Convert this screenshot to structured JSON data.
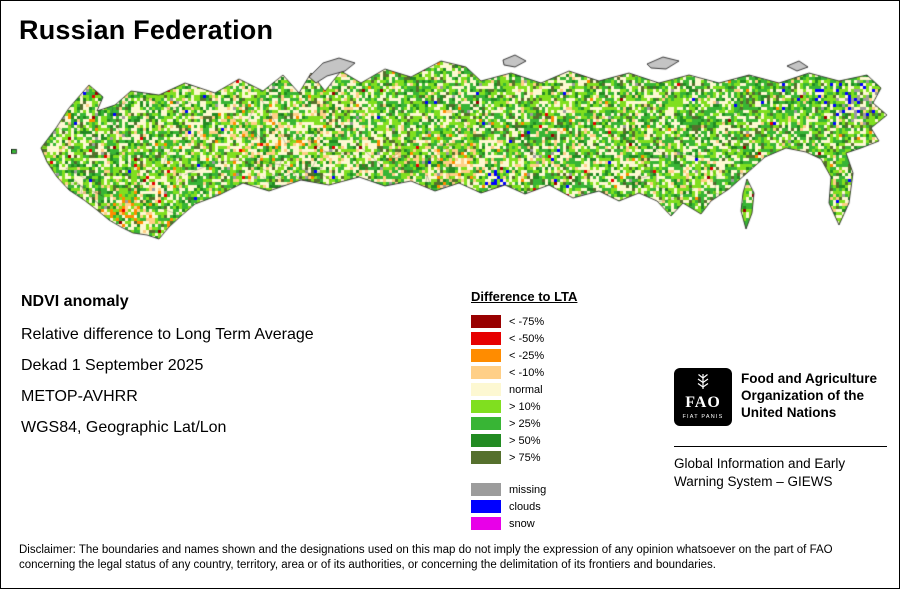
{
  "title": "Russian Federation",
  "info": {
    "heading": "NDVI anomaly",
    "lines": [
      "Relative difference to Long Term Average",
      "Dekad 1 September 2025",
      "METOP-AVHRR",
      "WGS84, Geographic Lat/Lon"
    ]
  },
  "legend": {
    "title": "Difference to LTA",
    "items": [
      {
        "label": "< -75%",
        "color": "#990000"
      },
      {
        "label": "< -50%",
        "color": "#e60000"
      },
      {
        "label": "< -25%",
        "color": "#ff8c00"
      },
      {
        "label": "< -10%",
        "color": "#ffcf87"
      },
      {
        "label": "normal",
        "color": "#fdf8d2"
      },
      {
        "label": "> 10%",
        "color": "#80df1f"
      },
      {
        "label": "> 25%",
        "color": "#38b535"
      },
      {
        "label": "> 50%",
        "color": "#228b22"
      },
      {
        "label": "> 75%",
        "color": "#55702d"
      }
    ],
    "extra": [
      {
        "label": "missing",
        "color": "#9c9c9c"
      },
      {
        "label": "clouds",
        "color": "#0000ff"
      },
      {
        "label": "snow",
        "color": "#e800e8"
      }
    ]
  },
  "org": {
    "logo_text": "FAO",
    "logo_motto": "FIAT PANIS",
    "name": "Food and Agriculture Organization of the United Nations",
    "subtitle": "Global Information and Early Warning System – GIEWS"
  },
  "disclaimer": "Disclaimer: The boundaries and names shown and the designations used on this map do not imply the expression of any opinion whatsoever on the part of FAO concerning the legal status of any country, territory, area or of its authorities, or concerning the delimitation of its frontiers and boundaries."
}
